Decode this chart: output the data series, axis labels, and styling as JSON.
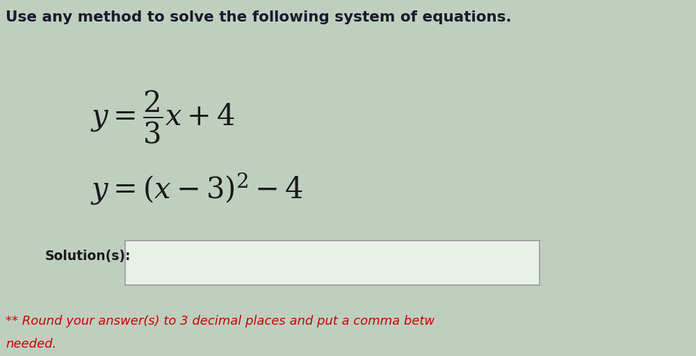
{
  "title": "Use any method to solve the following system of equations.",
  "title_fontsize": 15.5,
  "title_color": "#1a1a2e",
  "eq1_latex": "$y = \\dfrac{2}{3}x + 4$",
  "eq2_latex": "$y = (x - 3)^2 - 4$",
  "solution_label": "Solution(s):",
  "note_line1": "** Round your answer(s) to 3 decimal places and put a comma betw",
  "note_line2": "needed.",
  "note_color": "#cc0000",
  "background_color": "#bfcfbf",
  "box_facecolor": "#e8f0e8",
  "box_edgecolor": "#999999",
  "math_color": "#1a1a1a",
  "math_fontsize": 30,
  "solution_fontsize": 13.5,
  "note_fontsize": 13
}
